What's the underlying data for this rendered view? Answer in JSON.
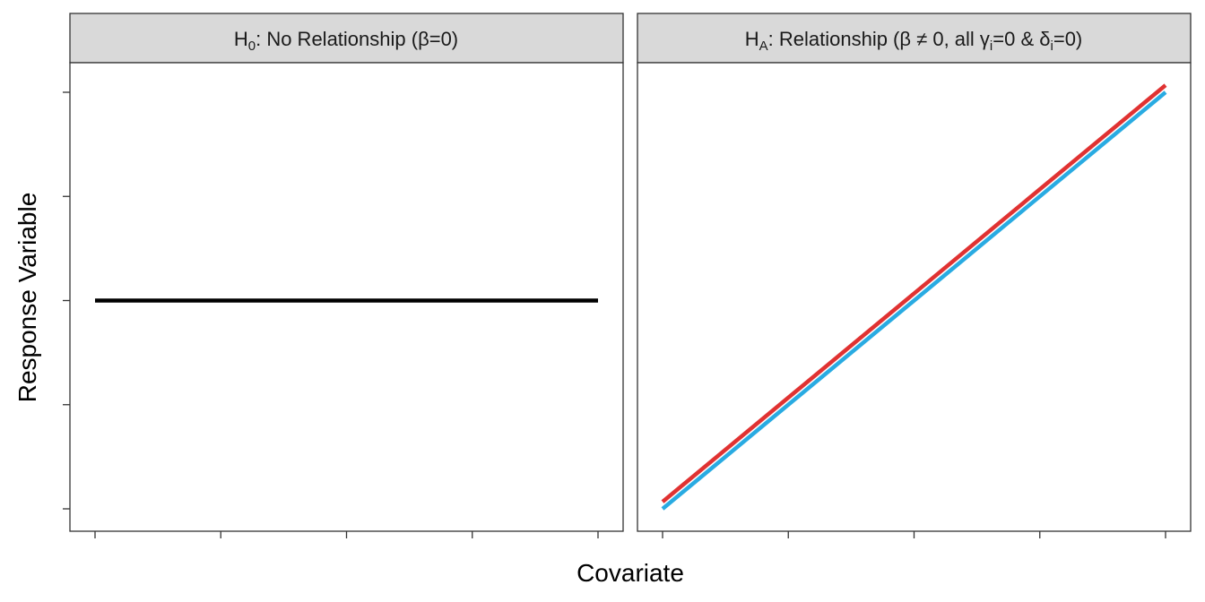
{
  "chart_data": {
    "type": "line",
    "xlabel": "Covariate",
    "ylabel": "Response Variable",
    "x_tick_count": 5,
    "y_tick_count": 5,
    "x_tick_labels": [],
    "y_tick_labels": [],
    "grid": false,
    "panels": [
      {
        "strip": {
          "main": "H",
          "sub": "0",
          "rest": ": No Relationship (β=0)"
        },
        "series": [
          {
            "color": "#000000",
            "x": [
              0,
              1
            ],
            "y": [
              0.5,
              0.5
            ]
          }
        ]
      },
      {
        "strip": {
          "main": "H",
          "sub": "A",
          "rest_a": ": Relationship (β ≠ 0, all γ",
          "sub_i": "i",
          "rest_b": "=0 & δ",
          "sub_j": "i",
          "rest_c": "=0)"
        },
        "series": [
          {
            "color": "#E03232",
            "x": [
              0,
              1
            ],
            "y": [
              0.017,
              1.017
            ]
          },
          {
            "color": "#29ABE2",
            "x": [
              0,
              1
            ],
            "y": [
              0.0,
              1.0
            ]
          }
        ]
      }
    ]
  }
}
